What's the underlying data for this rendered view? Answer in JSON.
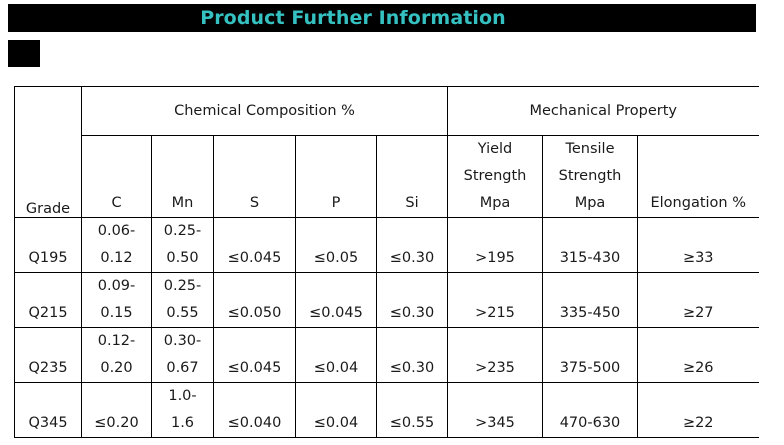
{
  "title": "Product Further Information",
  "table": {
    "grade_header": "Grade",
    "chem_group": "Chemical Composition  %",
    "mech_group": "Mechanical Property",
    "chem_columns": [
      "C",
      "Mn",
      "S",
      "P",
      "Si"
    ],
    "yield_header": [
      "Yield",
      "Strength",
      "Mpa"
    ],
    "tensile_header": [
      "Tensile",
      "Strength",
      "Mpa"
    ],
    "elongation_header": "Elongation %",
    "rows": [
      {
        "grade": "Q195",
        "c": [
          "0.06-",
          "0.12"
        ],
        "mn": [
          "0.25-",
          "0.50"
        ],
        "s": "≤0.045",
        "p": "≤0.05",
        "si": "≤0.30",
        "yield": ">195",
        "tensile": "315-430",
        "elongation": "≥33"
      },
      {
        "grade": "Q215",
        "c": [
          "0.09-",
          "0.15"
        ],
        "mn": [
          "0.25-",
          "0.55"
        ],
        "s": "≤0.050",
        "p": "≤0.045",
        "si": "≤0.30",
        "yield": ">215",
        "tensile": "335-450",
        "elongation": "≥27"
      },
      {
        "grade": "Q235",
        "c": [
          "0.12-",
          "0.20"
        ],
        "mn": [
          "0.30-",
          "0.67"
        ],
        "s": "≤0.045",
        "p": "≤0.04",
        "si": "≤0.30",
        "yield": ">235",
        "tensile": "375-500",
        "elongation": "≥26"
      },
      {
        "grade": "Q345",
        "c": [
          "≤0.20"
        ],
        "mn": [
          "1.0-",
          "1.6"
        ],
        "s": "≤0.040",
        "p": "≤0.04",
        "si": "≤0.55",
        "yield": ">345",
        "tensile": "470-630",
        "elongation": "≥22"
      }
    ]
  }
}
